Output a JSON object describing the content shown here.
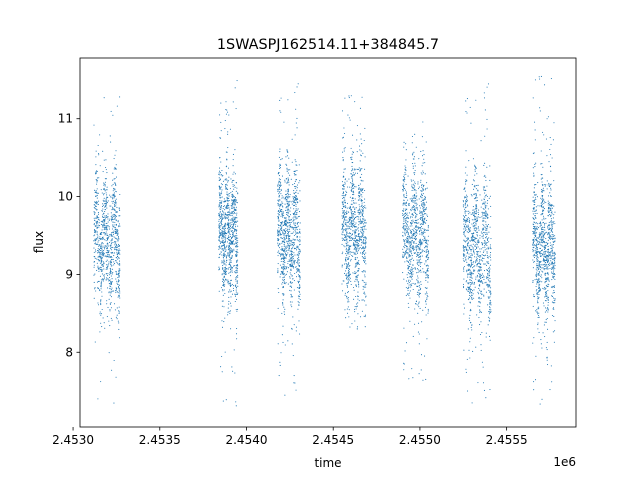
{
  "chart_data": {
    "type": "scatter",
    "title": "1SWASPJ162514.11+384845.7",
    "xlabel": "time",
    "ylabel": "flux",
    "x_offset_label": "1e6",
    "x_tick_values": [
      2.453,
      2.4535,
      2.454,
      2.4545,
      2.455,
      2.4555
    ],
    "x_tick_labels": [
      "2.4530",
      "2.4535",
      "2.4540",
      "2.4545",
      "2.4550",
      "2.4555"
    ],
    "y_tick_values": [
      8,
      9,
      10,
      11
    ],
    "y_tick_labels": [
      "8",
      "9",
      "10",
      "11"
    ],
    "xlim": [
      2.45304,
      2.4559
    ],
    "ylim": [
      7.04,
      11.78
    ],
    "grid": false,
    "point_color": "#1f77b4",
    "series": [
      {
        "observing_seasons": [
          {
            "x_range": [
              2.45312,
              2.45327
            ],
            "flux_median": 9.4,
            "flux_min": 7.25,
            "flux_max": 11.45
          },
          {
            "x_range": [
              2.45384,
              2.45395
            ],
            "flux_median": 9.5,
            "flux_min": 7.3,
            "flux_max": 11.5
          },
          {
            "x_range": [
              2.45418,
              2.45431
            ],
            "flux_median": 9.5,
            "flux_min": 7.4,
            "flux_max": 11.5
          },
          {
            "x_range": [
              2.45455,
              2.45469
            ],
            "flux_median": 9.5,
            "flux_min": 8.3,
            "flux_max": 11.3
          },
          {
            "x_range": [
              2.4549,
              2.45505
            ],
            "flux_median": 9.5,
            "flux_min": 7.6,
            "flux_max": 11.0
          },
          {
            "x_range": [
              2.45525,
              2.45541
            ],
            "flux_median": 9.3,
            "flux_min": 7.3,
            "flux_max": 11.5
          },
          {
            "x_range": [
              2.45565,
              2.45578
            ],
            "flux_median": 9.3,
            "flux_min": 7.3,
            "flux_max": 11.55
          }
        ]
      }
    ]
  }
}
